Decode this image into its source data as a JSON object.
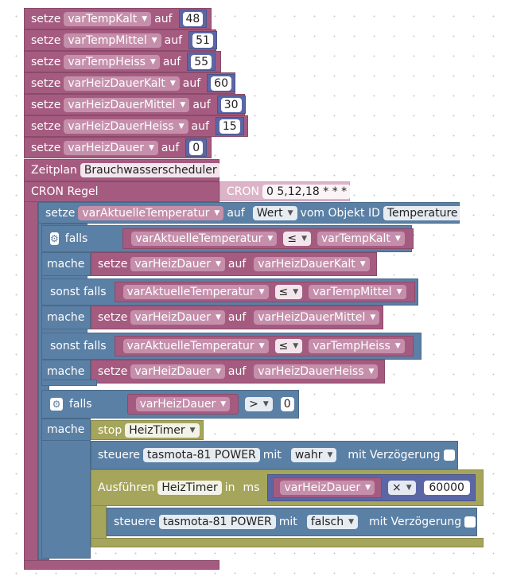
{
  "setze_rows": [
    {
      "kw": "setze",
      "var": "varTempKalt",
      "auf": "auf",
      "val": "48"
    },
    {
      "kw": "setze",
      "var": "varTempMittel",
      "auf": "auf",
      "val": "51"
    },
    {
      "kw": "setze",
      "var": "varTempHeiss",
      "auf": "auf",
      "val": "55"
    },
    {
      "kw": "setze",
      "var": "varHeizDauerKalt",
      "auf": "auf",
      "val": "60"
    },
    {
      "kw": "setze",
      "var": "varHeizDauerMittel",
      "auf": "auf",
      "val": "30"
    },
    {
      "kw": "setze",
      "var": "varHeizDauerHeiss",
      "auf": "auf",
      "val": "15"
    },
    {
      "kw": "setze",
      "var": "varHeizDauer",
      "auf": "auf",
      "val": "0"
    }
  ],
  "zeitplan": {
    "label": "Zeitplan",
    "name": "Brauchwasserscheduler"
  },
  "cron": {
    "label": "CRON Regel",
    "cron_kw": "CRON",
    "expr": "0 5,12,18 * * *"
  },
  "setze_temp": {
    "kw": "setze",
    "var": "varAktuelleTemperatur",
    "auf": "auf",
    "wert": "Wert",
    "vom": "vom Objekt ID",
    "obj": "Temperature"
  },
  "if1": {
    "falls": "falls",
    "mache": "mache",
    "sonst": "sonst falls",
    "cond_var": "varAktuelleTemperatur",
    "op": "≤",
    "branches": [
      {
        "cmp": "varTempKalt",
        "set_var": "varHeizDauer",
        "set_val": "varHeizDauerKalt"
      },
      {
        "cmp": "varTempMittel",
        "set_var": "varHeizDauer",
        "set_val": "varHeizDauerMittel"
      },
      {
        "cmp": "varTempHeiss",
        "set_var": "varHeizDauer",
        "set_val": "varHeizDauerHeiss"
      }
    ],
    "setze": "setze",
    "auf": "auf"
  },
  "if2": {
    "falls": "falls",
    "mache": "mache",
    "var": "varHeizDauer",
    "op": ">",
    "val": "0",
    "stop": "stop",
    "timer": "HeizTimer",
    "steuere": "steuere",
    "device": "tasmota-81 POWER",
    "mit": "mit",
    "wahr": "wahr",
    "delay": "mit Verzögerung",
    "ausfuehren": "Ausführen",
    "in": "in",
    "ms": "ms",
    "mul_var": "varHeizDauer",
    "mul_op": "×",
    "mul_val": "60000",
    "falsch": "falsch"
  },
  "colors": {
    "variable": "#a55b80",
    "logic": "#5b80a5",
    "timeout": "#a5a55b",
    "math": "#5b67a5"
  }
}
